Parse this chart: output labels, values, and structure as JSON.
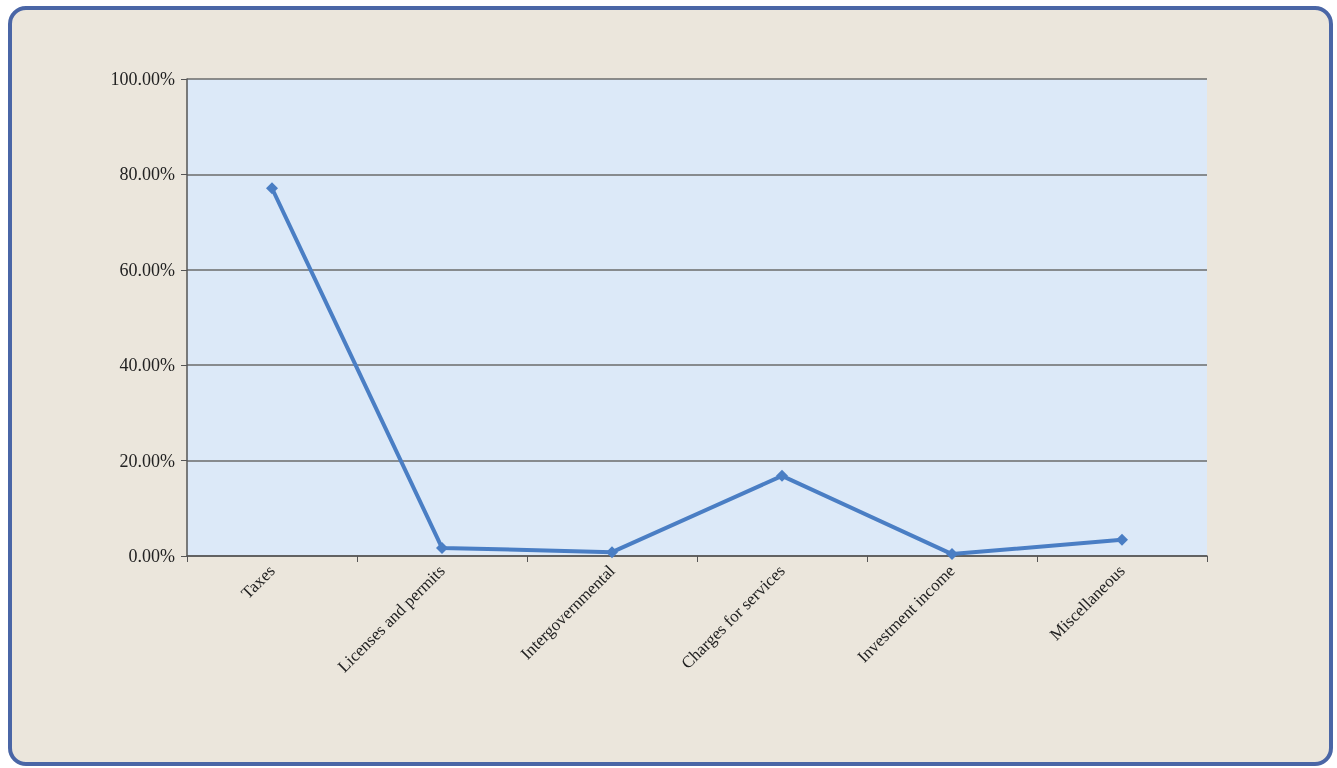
{
  "chart_data": {
    "type": "line",
    "categories": [
      "Taxes",
      "Licenses and permits",
      "Intergovernmental",
      "Charges for services",
      "Investment income",
      "Miscellaneous"
    ],
    "series": [
      {
        "color": "#4a7ec4",
        "values": [
          77.1,
          1.7,
          0.8,
          16.8,
          0.4,
          3.4
        ]
      }
    ],
    "ylim": [
      0,
      100
    ],
    "yticks": [
      {
        "value": 0,
        "label": "0.00%"
      },
      {
        "value": 20,
        "label": "20.00%"
      },
      {
        "value": 40,
        "label": "40.00%"
      },
      {
        "value": 60,
        "label": "60.00%"
      },
      {
        "value": 80,
        "label": "80.00%"
      },
      {
        "value": 100,
        "label": "100.00%"
      }
    ],
    "grid": "y",
    "marker": "diamond",
    "line_style": "solid"
  }
}
